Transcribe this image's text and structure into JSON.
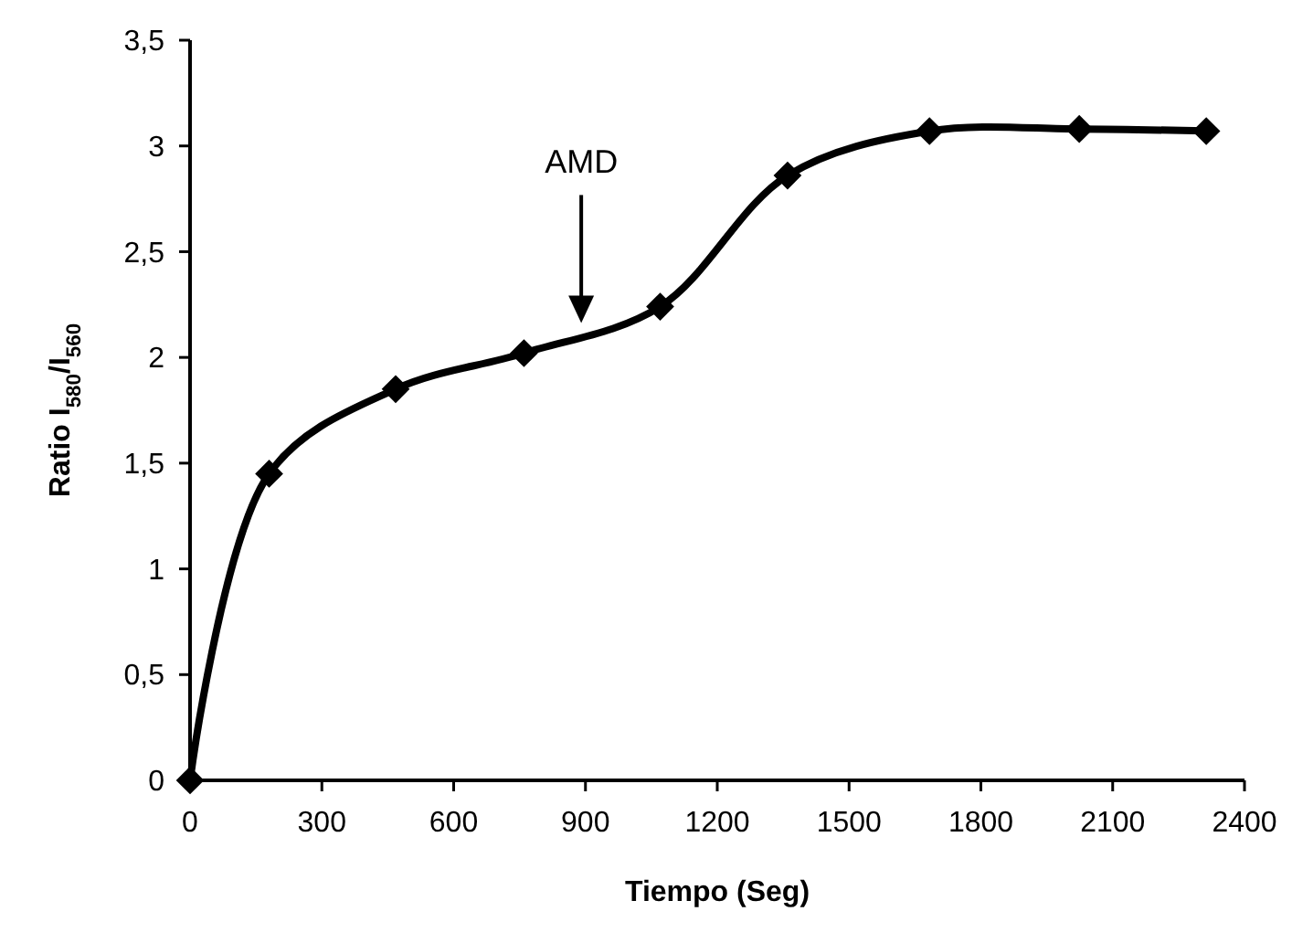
{
  "chart_data": {
    "type": "line",
    "xlabel": "Tiempo (Seg)",
    "ylabel": "Ratio I$_{580}$/I$_{560}$",
    "x": [
      0,
      180,
      468,
      760,
      1070,
      1360,
      1683,
      2024,
      2313
    ],
    "series": [
      {
        "color": "#000000",
        "values": [
          0,
          1.45,
          1.85,
          2.02,
          2.24,
          2.86,
          3.07,
          3.08,
          3.07
        ]
      }
    ],
    "xlim": [
      0,
      2400
    ],
    "xticks": [
      0,
      300,
      600,
      900,
      1200,
      1500,
      1800,
      2100,
      2400
    ],
    "ylim": [
      0,
      3.5
    ],
    "yticks": [
      0,
      {
        "value": 0.5,
        "label": "0,5"
      },
      1,
      {
        "value": 1.5,
        "label": "1,5"
      },
      2,
      {
        "value": 2.5,
        "label": "2,5"
      },
      3,
      {
        "value": 3.5,
        "label": "3,5"
      }
    ],
    "annotations": [
      "AMD"
    ],
    "marker": "diamond",
    "line_style": "solid",
    "grid": false
  }
}
